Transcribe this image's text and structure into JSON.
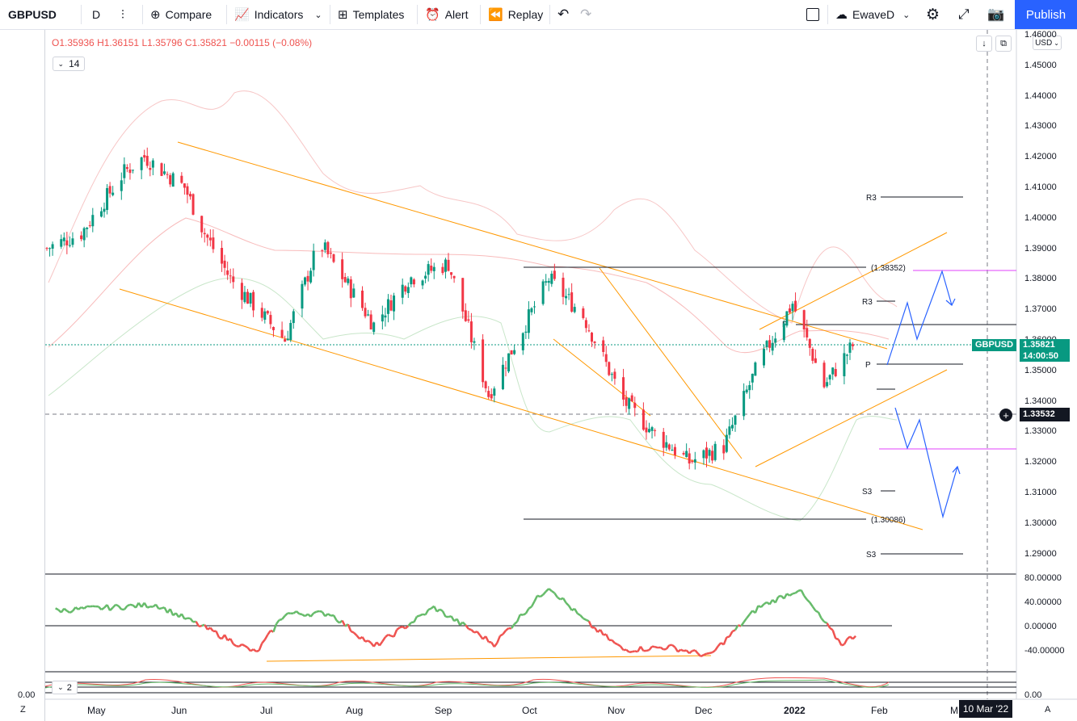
{
  "toolbar": {
    "symbol": "GBPUSD",
    "interval": "D",
    "compare": "Compare",
    "indicators": "Indicators",
    "templates": "Templates",
    "alert": "Alert",
    "replay": "Replay",
    "layout_name": "EwaveD",
    "publish": "Publish"
  },
  "legend": {
    "open": "O1.35936",
    "high": "H1.36151",
    "low": "L1.35796",
    "close": "C1.35821",
    "change": "−0.00115 (−0.08%)",
    "pane1_badge": "14",
    "pane2_badge": "2"
  },
  "currency": "USD",
  "price_axis": {
    "ticks": [
      "1.46000",
      "1.45000",
      "1.44000",
      "1.43000",
      "1.42000",
      "1.41000",
      "1.40000",
      "1.39000",
      "1.38000",
      "1.37000",
      "1.36000",
      "1.35000",
      "1.34000",
      "1.33000",
      "1.32000",
      "1.31000",
      "1.30000",
      "1.29000"
    ],
    "symbol_label": "GBPUSD",
    "last_price": "1.35821",
    "countdown": "14:00:50",
    "cursor_price": "1.33532",
    "last_color": "#089981"
  },
  "osc_axis": {
    "ticks": [
      "80.00000",
      "40.00000",
      "0.00000",
      "-40.00000"
    ]
  },
  "pane3_axis": {
    "left_value": "0.00",
    "right_value": "0.00"
  },
  "time_axis": {
    "labels": [
      "May",
      "Jun",
      "Jul",
      "Aug",
      "Sep",
      "Oct",
      "Nov",
      "Dec",
      "2022",
      "Feb",
      "M"
    ],
    "cursor_date": "10 Mar '22",
    "left_btn": "Z",
    "right_btn": "A"
  },
  "annotations": {
    "fib_high": "(1.38352)",
    "fib_low": "(1.30086)",
    "r3_top": "R3",
    "r3_mid": "R3",
    "pivot_upper": "P",
    "pivot_mid": "P",
    "s3_mid": "S3",
    "s3_bottom": "S3"
  },
  "colors": {
    "up": "#089981",
    "down": "#f23645",
    "channel": "#ff9800",
    "projection": "#2962ff",
    "fib_magenta": "#e040fb",
    "osc_up": "#66bb6a",
    "osc_down": "#ef5350"
  },
  "chart_data": {
    "type": "candlestick",
    "symbol": "GBPUSD",
    "interval": "D",
    "ylim": [
      1.28,
      1.46
    ],
    "closes_approx": [
      {
        "x": "2021-04-28",
        "y": 1.39
      },
      {
        "x": "2021-05-10",
        "y": 1.395
      },
      {
        "x": "2021-05-25",
        "y": 1.415
      },
      {
        "x": "2021-06-01",
        "y": 1.42
      },
      {
        "x": "2021-06-15",
        "y": 1.41
      },
      {
        "x": "2021-06-22",
        "y": 1.395
      },
      {
        "x": "2021-07-01",
        "y": 1.38
      },
      {
        "x": "2021-07-20",
        "y": 1.36
      },
      {
        "x": "2021-08-01",
        "y": 1.392
      },
      {
        "x": "2021-08-20",
        "y": 1.365
      },
      {
        "x": "2021-09-01",
        "y": 1.38
      },
      {
        "x": "2021-09-15",
        "y": 1.385
      },
      {
        "x": "2021-09-29",
        "y": 1.342
      },
      {
        "x": "2021-10-20",
        "y": 1.38
      },
      {
        "x": "2021-11-01",
        "y": 1.368
      },
      {
        "x": "2021-11-15",
        "y": 1.34
      },
      {
        "x": "2021-11-25",
        "y": 1.33
      },
      {
        "x": "2021-12-08",
        "y": 1.32
      },
      {
        "x": "2021-12-20",
        "y": 1.325
      },
      {
        "x": "2022-01-01",
        "y": 1.352
      },
      {
        "x": "2022-01-13",
        "y": 1.372
      },
      {
        "x": "2022-01-24",
        "y": 1.345
      },
      {
        "x": "2022-02-03",
        "y": 1.3582
      }
    ],
    "last_candle": {
      "open": 1.35936,
      "high": 1.36151,
      "low": 1.35796,
      "close": 1.35821
    },
    "levels": [
      {
        "label": "R3",
        "value": 1.4065
      },
      {
        "label": "(1.38352)",
        "value": 1.38352
      },
      {
        "label": "R3",
        "value": 1.3725
      },
      {
        "label": "P",
        "value": 1.3645
      },
      {
        "label": "P",
        "value": 1.3515
      },
      {
        "label": "S3",
        "value": 1.31
      },
      {
        "label": "(1.30086)",
        "value": 1.30086
      },
      {
        "label": "S3",
        "value": 1.289
      }
    ],
    "oscillator": {
      "ylim": [
        -60,
        85
      ],
      "values_approx": [
        {
          "x": "2021-05-01",
          "y": 25
        },
        {
          "x": "2021-05-20",
          "y": 30
        },
        {
          "x": "2021-06-05",
          "y": 35
        },
        {
          "x": "2021-06-25",
          "y": -10
        },
        {
          "x": "2021-07-10",
          "y": -45
        },
        {
          "x": "2021-07-20",
          "y": 20
        },
        {
          "x": "2021-08-05",
          "y": 20
        },
        {
          "x": "2021-08-20",
          "y": -35
        },
        {
          "x": "2021-09-10",
          "y": 30
        },
        {
          "x": "2021-10-01",
          "y": -30
        },
        {
          "x": "2021-10-20",
          "y": 65
        },
        {
          "x": "2021-11-01",
          "y": 10
        },
        {
          "x": "2021-11-15",
          "y": -40
        },
        {
          "x": "2021-12-01",
          "y": -35
        },
        {
          "x": "2021-12-15",
          "y": -50
        },
        {
          "x": "2022-01-01",
          "y": 30
        },
        {
          "x": "2022-01-15",
          "y": 60
        },
        {
          "x": "2022-01-30",
          "y": -30
        },
        {
          "x": "2022-02-04",
          "y": -15
        }
      ]
    }
  }
}
